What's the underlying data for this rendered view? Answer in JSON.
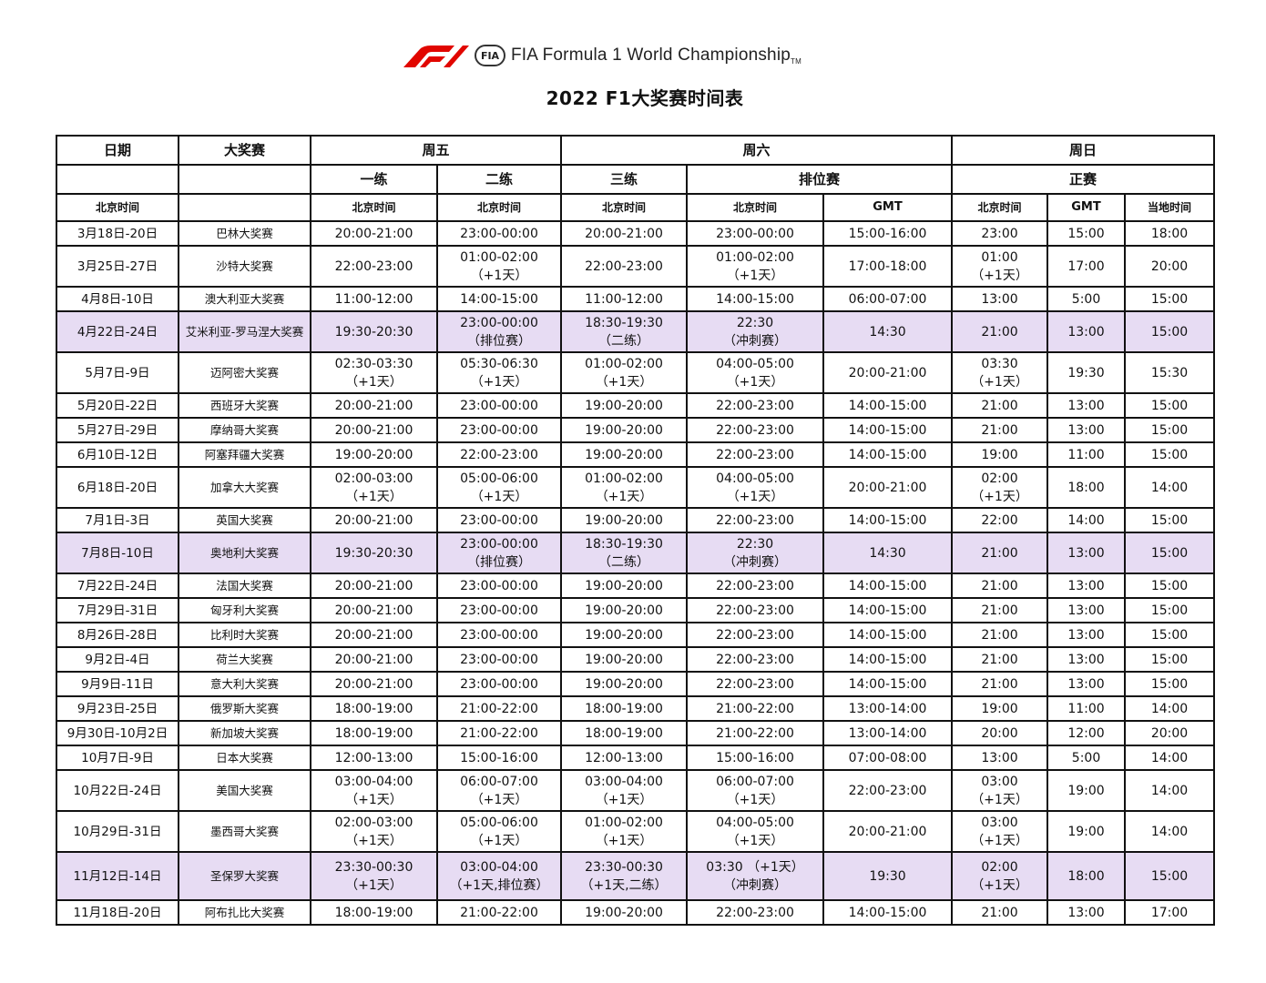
{
  "header": {
    "brand": "FIA Formula 1 World Championship",
    "trademark": "TM",
    "fia_badge": "FIA",
    "title": "2022 F1大奖赛时间表"
  },
  "colors": {
    "sprint_row": "#e7dcf3",
    "f1_red": "#e10600"
  },
  "columns": {
    "date": "日期",
    "gp": "大奖赛",
    "friday": "周五",
    "saturday": "周六",
    "sunday": "周日",
    "fp1": "一练",
    "fp2": "二练",
    "fp3": "三练",
    "quali": "排位赛",
    "race": "正赛",
    "beijing": "北京时间",
    "gmt": "GMT",
    "local": "当地时间"
  },
  "rows": [
    [
      "3月18日-20日",
      "巴林大奖赛",
      "20:00-21:00",
      "23:00-00:00",
      "20:00-21:00",
      "23:00-00:00",
      "15:00-16:00",
      "23:00",
      "15:00",
      "18:00"
    ],
    [
      "3月25日-27日",
      "沙特大奖赛",
      "22:00-23:00",
      "01:00-02:00\n（+1天）",
      "22:00-23:00",
      "01:00-02:00\n（+1天）",
      "17:00-18:00",
      "01:00\n（+1天）",
      "17:00",
      "20:00"
    ],
    [
      "4月8日-10日",
      "澳大利亚大奖赛",
      "11:00-12:00",
      "14:00-15:00",
      "11:00-12:00",
      "14:00-15:00",
      "06:00-07:00",
      "13:00",
      "5:00",
      "15:00"
    ],
    [
      "4月22日-24日",
      "艾米利亚-罗马涅大奖赛",
      "19:30-20:30",
      "23:00-00:00\n（排位赛）",
      "18:30-19:30\n（二练）",
      "22:30\n（冲刺赛）",
      "14:30",
      "21:00",
      "13:00",
      "15:00"
    ],
    [
      "5月7日-9日",
      "迈阿密大奖赛",
      "02:30-03:30\n（+1天）",
      "05:30-06:30\n（+1天）",
      "01:00-02:00\n（+1天）",
      "04:00-05:00\n（+1天）",
      "20:00-21:00",
      "03:30\n（+1天）",
      "19:30",
      "15:30"
    ],
    [
      "5月20日-22日",
      "西班牙大奖赛",
      "20:00-21:00",
      "23:00-00:00",
      "19:00-20:00",
      "22:00-23:00",
      "14:00-15:00",
      "21:00",
      "13:00",
      "15:00"
    ],
    [
      "5月27日-29日",
      "摩纳哥大奖赛",
      "20:00-21:00",
      "23:00-00:00",
      "19:00-20:00",
      "22:00-23:00",
      "14:00-15:00",
      "21:00",
      "13:00",
      "15:00"
    ],
    [
      "6月10日-12日",
      "阿塞拜疆大奖赛",
      "19:00-20:00",
      "22:00-23:00",
      "19:00-20:00",
      "22:00-23:00",
      "14:00-15:00",
      "19:00",
      "11:00",
      "15:00"
    ],
    [
      "6月18日-20日",
      "加拿大大奖赛",
      "02:00-03:00\n（+1天）",
      "05:00-06:00\n（+1天）",
      "01:00-02:00\n（+1天）",
      "04:00-05:00\n（+1天）",
      "20:00-21:00",
      "02:00\n（+1天）",
      "18:00",
      "14:00"
    ],
    [
      "7月1日-3日",
      "英国大奖赛",
      "20:00-21:00",
      "23:00-00:00",
      "19:00-20:00",
      "22:00-23:00",
      "14:00-15:00",
      "22:00",
      "14:00",
      "15:00"
    ],
    [
      "7月8日-10日",
      "奥地利大奖赛",
      "19:30-20:30",
      "23:00-00:00\n（排位赛）",
      "18:30-19:30\n（二练）",
      "22:30\n（冲刺赛）",
      "14:30",
      "21:00",
      "13:00",
      "15:00"
    ],
    [
      "7月22日-24日",
      "法国大奖赛",
      "20:00-21:00",
      "23:00-00:00",
      "19:00-20:00",
      "22:00-23:00",
      "14:00-15:00",
      "21:00",
      "13:00",
      "15:00"
    ],
    [
      "7月29日-31日",
      "匈牙利大奖赛",
      "20:00-21:00",
      "23:00-00:00",
      "19:00-20:00",
      "22:00-23:00",
      "14:00-15:00",
      "21:00",
      "13:00",
      "15:00"
    ],
    [
      "8月26日-28日",
      "比利时大奖赛",
      "20:00-21:00",
      "23:00-00:00",
      "19:00-20:00",
      "22:00-23:00",
      "14:00-15:00",
      "21:00",
      "13:00",
      "15:00"
    ],
    [
      "9月2日-4日",
      "荷兰大奖赛",
      "20:00-21:00",
      "23:00-00:00",
      "19:00-20:00",
      "22:00-23:00",
      "14:00-15:00",
      "21:00",
      "13:00",
      "15:00"
    ],
    [
      "9月9日-11日",
      "意大利大奖赛",
      "20:00-21:00",
      "23:00-00:00",
      "19:00-20:00",
      "22:00-23:00",
      "14:00-15:00",
      "21:00",
      "13:00",
      "15:00"
    ],
    [
      "9月23日-25日",
      "俄罗斯大奖赛",
      "18:00-19:00",
      "21:00-22:00",
      "18:00-19:00",
      "21:00-22:00",
      "13:00-14:00",
      "19:00",
      "11:00",
      "14:00"
    ],
    [
      "9月30日-10月2日",
      "新加坡大奖赛",
      "18:00-19:00",
      "21:00-22:00",
      "18:00-19:00",
      "21:00-22:00",
      "13:00-14:00",
      "20:00",
      "12:00",
      "20:00"
    ],
    [
      "10月7日-9日",
      "日本大奖赛",
      "12:00-13:00",
      "15:00-16:00",
      "12:00-13:00",
      "15:00-16:00",
      "07:00-08:00",
      "13:00",
      "5:00",
      "14:00"
    ],
    [
      "10月22日-24日",
      "美国大奖赛",
      "03:00-04:00\n（+1天）",
      "06:00-07:00\n（+1天）",
      "03:00-04:00\n（+1天）",
      "06:00-07:00\n（+1天）",
      "22:00-23:00",
      "03:00\n（+1天）",
      "19:00",
      "14:00"
    ],
    [
      "10月29日-31日",
      "墨西哥大奖赛",
      "02:00-03:00\n（+1天）",
      "05:00-06:00\n（+1天）",
      "01:00-02:00\n（+1天）",
      "04:00-05:00\n（+1天）",
      "20:00-21:00",
      "03:00\n（+1天）",
      "19:00",
      "14:00"
    ],
    [
      "11月12日-14日",
      "圣保罗大奖赛",
      "23:30-00:30\n（+1天）",
      "03:00-04:00\n（+1天,排位赛）",
      "23:30-00:30\n（+1天,二练）",
      "03:30 （+1天）\n（冲刺赛）",
      "19:30",
      "02:00\n（+1天）",
      "18:00",
      "15:00"
    ],
    [
      "11月18日-20日",
      "阿布扎比大奖赛",
      "18:00-19:00",
      "21:00-22:00",
      "19:00-20:00",
      "22:00-23:00",
      "14:00-15:00",
      "21:00",
      "13:00",
      "17:00"
    ]
  ],
  "sprint_rows": [
    3,
    10,
    21
  ]
}
